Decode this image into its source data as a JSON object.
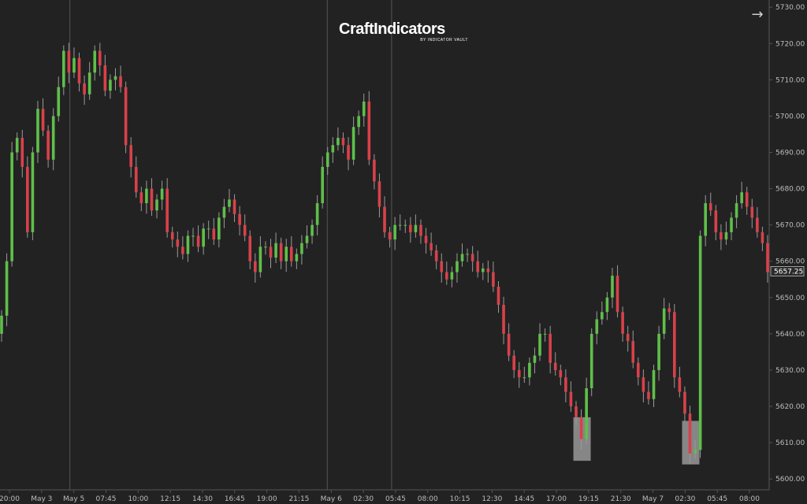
{
  "logo": {
    "text": "CraftIndicators",
    "subtitle": "BY INDICATOR VAULT"
  },
  "toolbar": {
    "expand_icon": "arrow-right-icon"
  },
  "colors": {
    "background": "#222222",
    "up": "#5fbf4a",
    "down": "#d8414a",
    "wick": "#9a9a9a",
    "axis_text": "#bdbdbd",
    "separator": "#555555",
    "highlight": "#d9d9d9"
  },
  "chart_data": {
    "type": "candlestick",
    "title": "",
    "ylim": [
      5597,
      5732
    ],
    "y_ticks": [
      "5600.00",
      "5610.00",
      "5620.00",
      "5630.00",
      "5640.00",
      "5650.00",
      "5660.00",
      "5670.00",
      "5680.00",
      "5690.00",
      "5700.00",
      "5710.00",
      "5720.00",
      "5730.00"
    ],
    "x_ticks": [
      "20:00",
      "May 3",
      "May 5",
      "07:45",
      "10:00",
      "12:15",
      "14:30",
      "16:45",
      "19:00",
      "21:15",
      "May 6",
      "02:30",
      "05:45",
      "08:00",
      "10:15",
      "12:30",
      "14:45",
      "17:00",
      "19:15",
      "21:30",
      "May 7",
      "02:30",
      "05:45",
      "08:00"
    ],
    "session_separators": [
      "May 5",
      "May 6",
      "05:45"
    ],
    "last_price": "5657.25",
    "closes": [
      5645,
      5660,
      5690,
      5694,
      5686,
      5668,
      5690,
      5702,
      5696,
      5688,
      5700,
      5708,
      5718,
      5712,
      5716,
      5709,
      5706,
      5712,
      5718,
      5714,
      5707,
      5710,
      5711,
      5708,
      5692,
      5686,
      5679,
      5676,
      5680,
      5674,
      5677,
      5680,
      5668,
      5666,
      5664,
      5662,
      5667,
      5667,
      5664,
      5669,
      5669,
      5666,
      5672,
      5675,
      5677,
      5673,
      5670,
      5667,
      5660,
      5657,
      5664,
      5664,
      5661,
      5665,
      5660,
      5664,
      5660,
      5662,
      5665,
      5667,
      5670,
      5676,
      5686,
      5690,
      5692,
      5694,
      5692,
      5688,
      5697,
      5700,
      5704,
      5688,
      5682,
      5675,
      5668,
      5666,
      5670,
      5670,
      5670,
      5668,
      5670,
      5667,
      5665,
      5663,
      5660,
      5657,
      5655,
      5657,
      5660,
      5662,
      5662,
      5660,
      5657,
      5658,
      5657,
      5653,
      5648,
      5640,
      5634,
      5630,
      5628,
      5628,
      5632,
      5634,
      5640,
      5640,
      5632,
      5630,
      5628,
      5624,
      5620,
      5617,
      5611,
      5625,
      5640,
      5644,
      5646,
      5650,
      5656,
      5646,
      5640,
      5638,
      5632,
      5628,
      5624,
      5622,
      5630,
      5640,
      5647,
      5646,
      5628,
      5624,
      5618,
      5607,
      5608,
      5667,
      5676,
      5674,
      5668,
      5666,
      5668,
      5672,
      5676,
      5679,
      5675,
      5672,
      5668,
      5665,
      5657
    ],
    "highlights": [
      {
        "low": 5605,
        "high": 5617
      },
      {
        "low": 5604,
        "high": 5616
      }
    ]
  }
}
